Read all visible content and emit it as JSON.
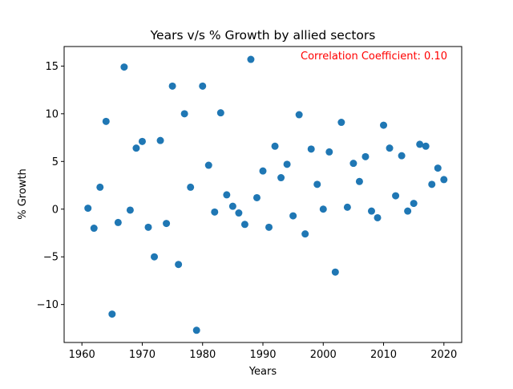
{
  "chart_data": {
    "type": "scatter",
    "title": "Years v/s % Growth by allied sectors",
    "xlabel": "Years",
    "ylabel": "% Growth",
    "xlim": [
      1957.05,
      2022.95
    ],
    "ylim": [
      -13.98,
      17.05
    ],
    "xticks": [
      1960,
      1970,
      1980,
      1990,
      2000,
      2010,
      2020
    ],
    "yticks": [
      -10,
      -5,
      0,
      5,
      10,
      15
    ],
    "grid": false,
    "legend": "none",
    "marker_color": "#1f77b4",
    "annotation": {
      "text": "Correlation Coefficient: 0.10",
      "color": "#ff0000",
      "placement": "top-right"
    },
    "series": [
      {
        "x": [
          1961,
          1962,
          1963,
          1964,
          1965,
          1966,
          1967,
          1968,
          1969,
          1970,
          1971,
          1972,
          1973,
          1974,
          1975,
          1976,
          1977,
          1978,
          1979,
          1980,
          1981,
          1982,
          1983,
          1984,
          1985,
          1986,
          1987,
          1988,
          1989,
          1990,
          1991,
          1992,
          1993,
          1994,
          1995,
          1996,
          1997,
          1998,
          1999,
          2000,
          2001,
          2002,
          2003,
          2004,
          2005,
          2006,
          2007,
          2008,
          2009,
          2010,
          2011,
          2012,
          2013,
          2014,
          2015,
          2016,
          2017,
          2018,
          2019,
          2020
        ],
        "y": [
          0.1,
          -2.0,
          2.3,
          9.2,
          -11.0,
          -1.4,
          14.9,
          -0.1,
          6.4,
          7.1,
          -1.9,
          -5.0,
          7.2,
          -1.5,
          12.9,
          -5.8,
          10.0,
          2.3,
          -12.7,
          12.9,
          4.6,
          -0.3,
          10.1,
          1.5,
          0.3,
          -0.4,
          -1.6,
          15.7,
          1.2,
          4.0,
          -1.9,
          6.6,
          3.3,
          4.7,
          -0.7,
          9.9,
          -2.6,
          6.3,
          2.6,
          0.0,
          6.0,
          -6.6,
          9.1,
          0.2,
          4.8,
          2.9,
          5.5,
          -0.2,
          -0.9,
          8.8,
          6.4,
          1.4,
          5.6,
          -0.2,
          0.6,
          6.8,
          6.6,
          2.6,
          4.3,
          3.1
        ]
      }
    ]
  }
}
